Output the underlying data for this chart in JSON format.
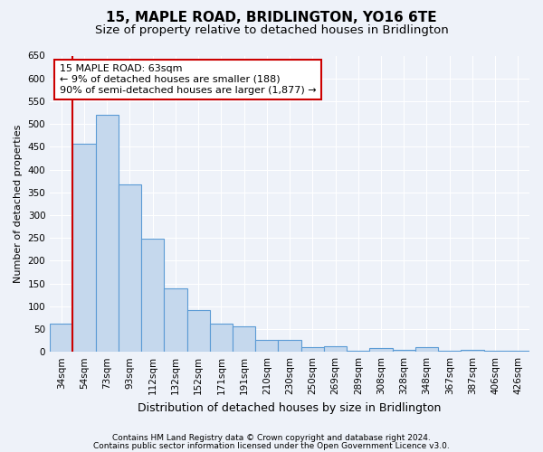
{
  "title1": "15, MAPLE ROAD, BRIDLINGTON, YO16 6TE",
  "title2": "Size of property relative to detached houses in Bridlington",
  "xlabel": "Distribution of detached houses by size in Bridlington",
  "ylabel": "Number of detached properties",
  "categories": [
    "34sqm",
    "54sqm",
    "73sqm",
    "93sqm",
    "112sqm",
    "132sqm",
    "152sqm",
    "171sqm",
    "191sqm",
    "210sqm",
    "230sqm",
    "250sqm",
    "269sqm",
    "289sqm",
    "308sqm",
    "328sqm",
    "348sqm",
    "367sqm",
    "387sqm",
    "406sqm",
    "426sqm"
  ],
  "values": [
    62,
    457,
    521,
    368,
    248,
    140,
    91,
    61,
    55,
    26,
    26,
    11,
    12,
    3,
    8,
    5,
    10,
    3,
    5,
    3,
    3
  ],
  "bar_color": "#c5d8ed",
  "bar_edge_color": "#5b9bd5",
  "bar_edge_width": 0.8,
  "marker_line_color": "#cc0000",
  "ylim": [
    0,
    650
  ],
  "yticks": [
    0,
    50,
    100,
    150,
    200,
    250,
    300,
    350,
    400,
    450,
    500,
    550,
    600,
    650
  ],
  "annotation_text": "15 MAPLE ROAD: 63sqm\n← 9% of detached houses are smaller (188)\n90% of semi-detached houses are larger (1,877) →",
  "annotation_box_color": "#ffffff",
  "annotation_border_color": "#cc0000",
  "footer1": "Contains HM Land Registry data © Crown copyright and database right 2024.",
  "footer2": "Contains public sector information licensed under the Open Government Licence v3.0.",
  "background_color": "#eef2f9",
  "grid_color": "#ffffff",
  "title1_fontsize": 11,
  "title2_fontsize": 9.5,
  "tick_fontsize": 7.5,
  "xlabel_fontsize": 9,
  "ylabel_fontsize": 8,
  "footer_fontsize": 6.5,
  "annotation_fontsize": 8
}
